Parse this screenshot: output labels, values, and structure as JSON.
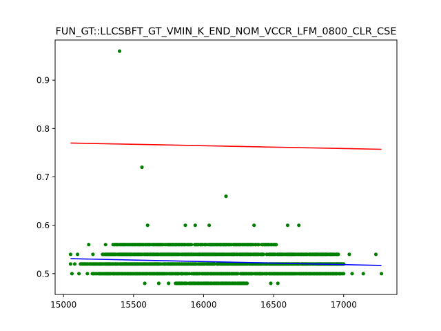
{
  "chart_data": {
    "type": "scatter",
    "title": "FUN_GT::LLCSBFT_GT_VMIN_K_END_NOM_VCCR_LFM_0800_CLR_CSE",
    "xlabel": "",
    "ylabel": "",
    "xlim": [
      14940,
      17380
    ],
    "ylim": [
      0.457,
      0.983
    ],
    "x_ticks": [
      15000,
      15500,
      16000,
      16500,
      17000
    ],
    "y_ticks": [
      0.5,
      0.6,
      0.7,
      0.8,
      0.9
    ],
    "grid": false,
    "colors": {
      "points": "#008000",
      "red_line": "#ff0000",
      "blue_line": "#0000ff"
    },
    "series": [
      {
        "type": "line",
        "color": "#ff0000",
        "points": [
          [
            15050,
            0.77
          ],
          [
            17270,
            0.757
          ]
        ]
      },
      {
        "type": "line",
        "color": "#0000ff",
        "points": [
          [
            15050,
            0.531
          ],
          [
            17270,
            0.517
          ]
        ]
      },
      {
        "type": "scatter",
        "color": "#008000",
        "points": [
          [
            15400,
            0.96
          ],
          [
            15560,
            0.72
          ],
          [
            16160,
            0.66
          ],
          [
            15600,
            0.6
          ],
          [
            15870,
            0.6
          ],
          [
            15940,
            0.6
          ],
          [
            16040,
            0.6
          ],
          [
            16360,
            0.6
          ],
          [
            16600,
            0.6
          ],
          [
            16680,
            0.6
          ],
          [
            15180,
            0.56
          ],
          [
            15300,
            0.56
          ],
          [
            16500,
            0.56
          ],
          [
            15050,
            0.54
          ],
          [
            15100,
            0.54
          ],
          [
            15210,
            0.54
          ],
          [
            16800,
            0.54
          ],
          [
            17040,
            0.54
          ],
          [
            17230,
            0.54
          ],
          [
            15050,
            0.52
          ],
          [
            15080,
            0.52
          ],
          [
            16950,
            0.52
          ],
          [
            17000,
            0.52
          ],
          [
            15060,
            0.5
          ],
          [
            15110,
            0.5
          ],
          [
            15170,
            0.5
          ],
          [
            17060,
            0.5
          ],
          [
            17140,
            0.5
          ],
          [
            17270,
            0.5
          ],
          [
            15580,
            0.48
          ],
          [
            15680,
            0.48
          ],
          [
            15750,
            0.48
          ],
          [
            16480,
            0.48
          ],
          [
            16530,
            0.48
          ]
        ],
        "bands": [
          {
            "y": 0.56,
            "x_range": [
              15350,
              16520
            ]
          },
          {
            "y": 0.54,
            "x_range": [
              15280,
              16960
            ]
          },
          {
            "y": 0.52,
            "x_range": [
              15120,
              16990
            ]
          },
          {
            "y": 0.5,
            "x_range": [
              15200,
              17000
            ]
          },
          {
            "y": 0.48,
            "x_range": [
              15800,
              16310
            ]
          }
        ]
      }
    ]
  }
}
